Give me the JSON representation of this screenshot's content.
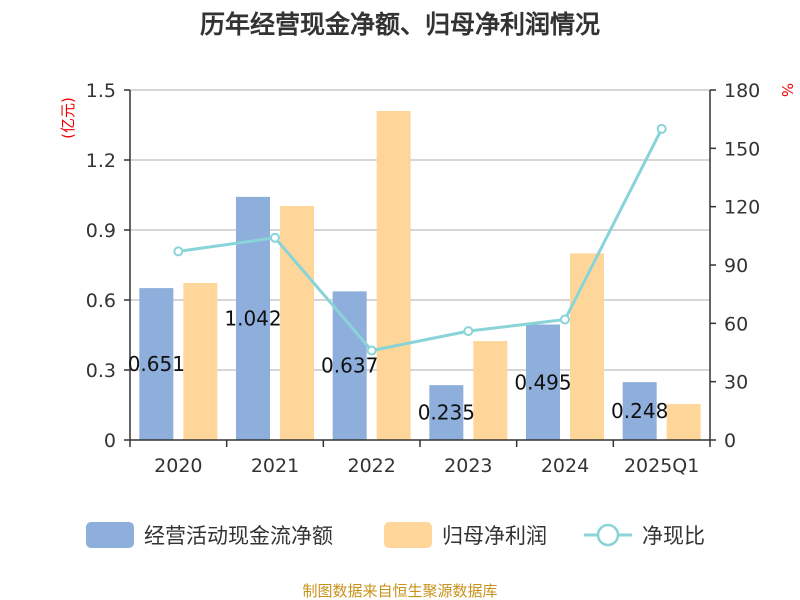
{
  "chart_data": {
    "type": "bar",
    "title": "历年经营现金净额、归母净利润情况",
    "categories": [
      "2020",
      "2021",
      "2022",
      "2023",
      "2024",
      "2025Q1"
    ],
    "left_axis": {
      "label": "(亿元)",
      "range": [
        0,
        1.5
      ],
      "ticks": [
        "0",
        "0.3",
        "0.6",
        "0.9",
        "1.2",
        "1.5"
      ]
    },
    "right_axis": {
      "label": "%",
      "range": [
        0,
        180
      ],
      "ticks": [
        "0",
        "30",
        "60",
        "90",
        "120",
        "150",
        "180"
      ]
    },
    "grid": true,
    "legend_position": "bottom",
    "series": [
      {
        "name": "经营活动现金流净额",
        "type": "bar",
        "color": "#8eaedb",
        "values": [
          0.651,
          1.042,
          0.637,
          0.235,
          0.495,
          0.248
        ],
        "labels": [
          "0.651",
          "1.042",
          "0.637",
          "0.235",
          "0.495",
          "0.248"
        ]
      },
      {
        "name": "归母净利润",
        "type": "bar",
        "color": "#ffd699",
        "values": [
          0.673,
          1.003,
          1.41,
          0.424,
          0.8,
          0.154
        ]
      },
      {
        "name": "净现比",
        "type": "line",
        "axis": "right",
        "color": "#88d4d8",
        "values": [
          97,
          104,
          46,
          56,
          62,
          160
        ]
      }
    ]
  },
  "footer": "制图数据来自恒生聚源数据库"
}
